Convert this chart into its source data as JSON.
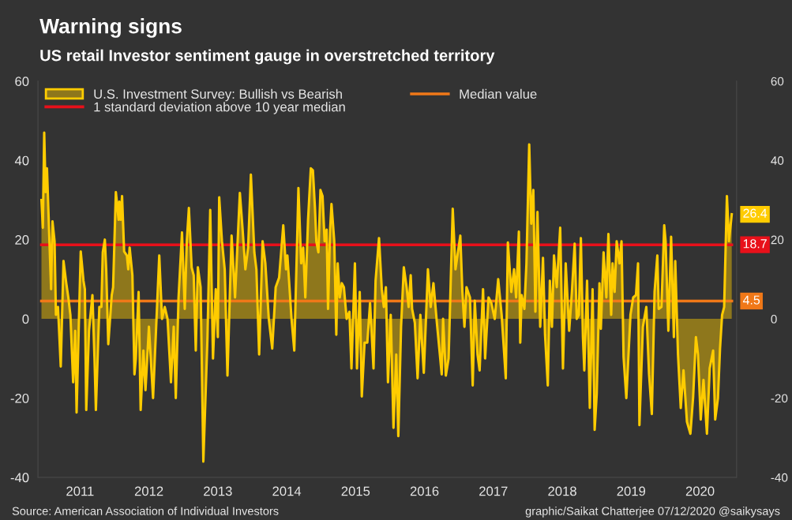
{
  "chart_data": {
    "type": "area",
    "title": "Warning signs",
    "subtitle": "US retail Investor sentiment gauge in overstretched territory",
    "series": [
      {
        "name": "U.S. Investment Survey: Bullish vs Bearish",
        "color": "#ffcc00",
        "x": [
          2010.44,
          2010.46,
          2010.48,
          2010.5,
          2010.52,
          2010.55,
          2010.58,
          2010.6,
          2010.63,
          2010.65,
          2010.68,
          2010.72,
          2010.76,
          2010.8,
          2010.83,
          2010.86,
          2010.9,
          2010.93,
          2010.95,
          2010.98,
          2011.01,
          2011.05,
          2011.07,
          2011.09,
          2011.13,
          2011.18,
          2011.21,
          2011.23,
          2011.28,
          2011.31,
          2011.33,
          2011.36,
          2011.38,
          2011.41,
          2011.46,
          2011.48,
          2011.52,
          2011.56,
          2011.57,
          2011.59,
          2011.61,
          2011.64,
          2011.68,
          2011.7,
          2011.72,
          2011.76,
          2011.79,
          2011.81,
          2011.85,
          2011.88,
          2011.92,
          2011.95,
          2012.0,
          2012.06,
          2012.11,
          2012.15,
          2012.19,
          2012.23,
          2012.27,
          2012.32,
          2012.36,
          2012.39,
          2012.43,
          2012.48,
          2012.52,
          2012.55,
          2012.58,
          2012.62,
          2012.65,
          2012.68,
          2012.71,
          2012.75,
          2012.79,
          2012.85,
          2012.89,
          2012.93,
          2012.97,
          2013.0,
          2013.02,
          2013.06,
          2013.1,
          2013.14,
          2013.2,
          2013.25,
          2013.32,
          2013.36,
          2013.4,
          2013.44,
          2013.48,
          2013.53,
          2013.56,
          2013.6,
          2013.65,
          2013.69,
          2013.74,
          2013.79,
          2013.84,
          2013.89,
          2013.95,
          2013.99,
          2014.01,
          2014.07,
          2014.11,
          2014.15,
          2014.17,
          2014.21,
          2014.24,
          2014.27,
          2014.31,
          2014.35,
          2014.38,
          2014.41,
          2014.43,
          2014.46,
          2014.49,
          2014.52,
          2014.55,
          2014.58,
          2014.6,
          2014.63,
          2014.65,
          2014.69,
          2014.72,
          2014.74,
          2014.77,
          2014.8,
          2014.83,
          2014.87,
          2014.91,
          2014.94,
          2014.99,
          2015.02,
          2015.06,
          2015.09,
          2015.13,
          2015.17,
          2015.21,
          2015.26,
          2015.29,
          2015.34,
          2015.38,
          2015.41,
          2015.44,
          2015.47,
          2015.51,
          2015.55,
          2015.59,
          2015.62,
          2015.66,
          2015.7,
          2015.74,
          2015.77,
          2015.8,
          2015.82,
          2015.86,
          2015.9,
          2015.94,
          2015.99,
          2016.05,
          2016.09,
          2016.13,
          2016.18,
          2016.25,
          2016.27,
          2016.31,
          2016.35,
          2016.41,
          2016.45,
          2016.52,
          2016.55,
          2016.58,
          2016.61,
          2016.66,
          2016.7,
          2016.73,
          2016.77,
          2016.8,
          2016.85,
          2016.88,
          2016.93,
          2016.97,
          2017.02,
          2017.07,
          2017.12,
          2017.18,
          2017.21,
          2017.26,
          2017.3,
          2017.33,
          2017.37,
          2017.39,
          2017.41,
          2017.45,
          2017.48,
          2017.52,
          2017.55,
          2017.58,
          2017.61,
          2017.64,
          2017.68,
          2017.72,
          2017.75,
          2017.79,
          2017.82,
          2017.85,
          2017.88,
          2017.92,
          2017.97,
          2018.01,
          2018.05,
          2018.1,
          2018.14,
          2018.18,
          2018.21,
          2018.24,
          2018.27,
          2018.3,
          2018.32,
          2018.36,
          2018.4,
          2018.44,
          2018.47,
          2018.5,
          2018.54,
          2018.56,
          2018.6,
          2018.64,
          2018.67,
          2018.71,
          2018.73,
          2018.76,
          2018.79,
          2018.83,
          2018.86,
          2018.89,
          2018.93,
          2018.99,
          2019.03,
          2019.07,
          2019.1,
          2019.12,
          2019.17,
          2019.19,
          2019.22,
          2019.26,
          2019.3,
          2019.34,
          2019.38,
          2019.4,
          2019.44,
          2019.48,
          2019.5,
          2019.54,
          2019.58,
          2019.62,
          2019.64,
          2019.68,
          2019.72,
          2019.76,
          2019.81,
          2019.86,
          2019.9,
          2019.94,
          2019.97,
          2020.01,
          2020.05,
          2020.1,
          2020.14,
          2020.19,
          2020.22,
          2020.26,
          2020.29,
          2020.32,
          2020.35,
          2020.39,
          2020.42,
          2020.46
        ],
        "values": [
          30,
          23,
          47,
          32,
          38,
          22.5,
          7.5,
          24.6,
          19.6,
          1,
          3,
          -12,
          14.6,
          9,
          5.4,
          1,
          -16,
          -3,
          -23.6,
          -3,
          17,
          9.6,
          7.5,
          -23,
          -3,
          6,
          -10,
          -23,
          3,
          3,
          16.8,
          20,
          12.5,
          -6.4,
          6,
          8,
          32,
          25,
          29.6,
          25,
          31,
          17,
          16,
          12.5,
          18,
          11,
          -14,
          -10,
          6.8,
          -23,
          -8,
          -18,
          -2,
          -20,
          0,
          16,
          0,
          3,
          0,
          -16,
          -2,
          -20,
          5.4,
          21.8,
          2.5,
          19.6,
          28,
          13,
          11,
          -8,
          13,
          8,
          -36,
          -4.6,
          27.5,
          -10,
          7.5,
          -4.6,
          30.7,
          19.6,
          12.5,
          -14.3,
          21,
          5.4,
          31.8,
          22.5,
          12.5,
          18,
          36.4,
          16.8,
          12.5,
          -9,
          19.6,
          14,
          0,
          -7.5,
          8,
          10.4,
          23.6,
          12.5,
          16,
          0,
          -8,
          19,
          33,
          14,
          18,
          5.4,
          25,
          38,
          37.5,
          28,
          19.6,
          16.8,
          32.5,
          31,
          19.6,
          22.5,
          2.5,
          22.5,
          29,
          19.6,
          -4,
          14,
          5.4,
          9,
          8,
          0,
          1.8,
          -12.5,
          14,
          -12.5,
          6.8,
          -19.6,
          -6,
          -6,
          4,
          -12.5,
          9.6,
          20.4,
          7.5,
          3,
          8,
          -16,
          1,
          -27.5,
          -9,
          -29.6,
          -2,
          13,
          8,
          3,
          11,
          2.5,
          -1,
          -15,
          1,
          -13.6,
          12.5,
          3,
          9,
          -1,
          -14,
          0,
          -14.3,
          -10,
          27.8,
          12.5,
          21,
          6.8,
          -2,
          8,
          5.4,
          -16.8,
          4.6,
          -9,
          -13,
          7.5,
          -10,
          5.4,
          4,
          0,
          10,
          1,
          -15,
          19.3,
          6.8,
          12.5,
          5.4,
          22,
          -6,
          6,
          2.5,
          14,
          44,
          24,
          32.5,
          1.8,
          27,
          -2,
          15.4,
          -4,
          -16.8,
          9.6,
          -2,
          16,
          8,
          23,
          -12.5,
          14,
          -3,
          6.8,
          19,
          0,
          1,
          20.4,
          -4.6,
          -13,
          9.6,
          -22.5,
          7.5,
          -28,
          -19,
          9,
          -2.5,
          16.8,
          5.4,
          21.4,
          1,
          14,
          6.8,
          19.6,
          14,
          19.6,
          -9.6,
          -20,
          1,
          5.4,
          6,
          14,
          -26.8,
          -2,
          0,
          3,
          -14,
          -24,
          6.8,
          16,
          2.5,
          3,
          23.6,
          19.6,
          -3,
          20.7,
          -4.6,
          14.6,
          -9,
          -22.5,
          -13,
          -26,
          -29,
          -19.6,
          -4.6,
          -9,
          -25.4,
          -15.4,
          -29,
          -12.5,
          -8,
          -25.4,
          -20,
          -7.5,
          1,
          3,
          31,
          19.6,
          26.4
        ]
      },
      {
        "name": "1 standard deviation above 10 year median",
        "type": "line",
        "color": "#e8101a",
        "x": [
          2010.44,
          2020.46
        ],
        "values": [
          18.7,
          18.7
        ],
        "value_labels": [
          null,
          "18.7"
        ]
      },
      {
        "name": "Median value",
        "type": "line",
        "color": "#f07818",
        "x": [
          2010.44,
          2020.46
        ],
        "values": [
          4.5,
          4.5
        ],
        "value_labels": [
          null,
          "4.5"
        ]
      }
    ],
    "annotations": [
      {
        "text": "26.4",
        "x": 2020.46,
        "y": 26.4
      },
      "Source: American Association of Individual Investors",
      "graphic/Saikat Chatterjee 07/12/2020 @saikysays"
    ],
    "xlim": [
      2010.39,
      2020.53
    ],
    "xticks": [
      2011,
      2012,
      2013,
      2014,
      2015,
      2016,
      2017,
      2018,
      2019,
      2020
    ],
    "ylim": [
      -40,
      60
    ],
    "yticks": [
      -40,
      -20,
      0,
      20,
      40,
      60
    ],
    "y2lim": [
      -40,
      60
    ],
    "y2ticks": [
      -40,
      -20,
      0,
      20,
      40,
      60
    ],
    "legend": "top left",
    "grid": false
  }
}
